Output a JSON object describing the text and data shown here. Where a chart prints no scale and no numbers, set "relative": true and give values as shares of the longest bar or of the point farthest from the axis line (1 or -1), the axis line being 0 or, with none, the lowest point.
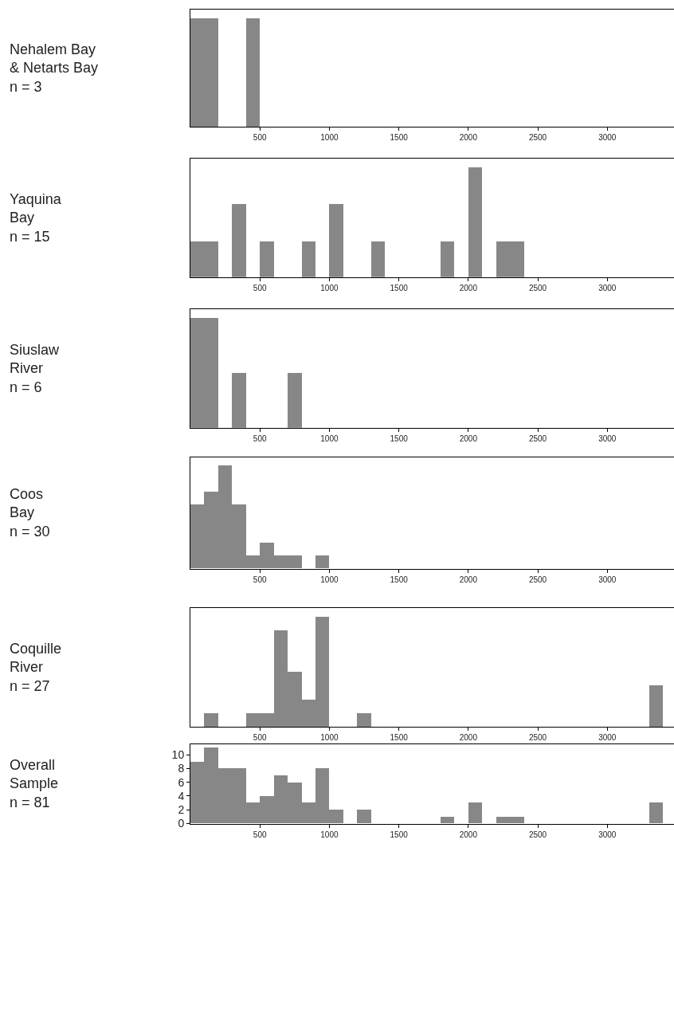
{
  "chart_data": [
    {
      "type": "bar",
      "ylabel": "Nehalem Bay\n& Netarts Bay\nn = 3",
      "relative": true,
      "color": "#878787",
      "x": [
        50,
        150,
        250,
        350,
        450,
        550,
        650,
        750,
        850,
        950,
        1050,
        1150,
        1250,
        1350,
        1450,
        1550,
        1650,
        1750,
        1850,
        1950,
        2050,
        2150,
        2250,
        2350,
        2450,
        2550,
        2650,
        2750,
        2850,
        2950,
        3050,
        3150,
        3250,
        3350
      ],
      "values": [
        1,
        1,
        0,
        0,
        1,
        0,
        0,
        0,
        0,
        0,
        0,
        0,
        0,
        0,
        0,
        0,
        0,
        0,
        0,
        0,
        0,
        0,
        0,
        0,
        0,
        0,
        0,
        0,
        0,
        0,
        0,
        0,
        0,
        0
      ],
      "xlim": [
        0,
        3480
      ],
      "xticks": [
        500,
        1000,
        1500,
        2000,
        2500,
        3000
      ]
    },
    {
      "type": "bar",
      "ylabel": "Yaquina\nBay\nn = 15",
      "relative": true,
      "color": "#878787",
      "x": [
        50,
        150,
        250,
        350,
        450,
        550,
        650,
        750,
        850,
        950,
        1050,
        1150,
        1250,
        1350,
        1450,
        1550,
        1650,
        1750,
        1850,
        1950,
        2050,
        2150,
        2250,
        2350,
        2450,
        2550,
        2650,
        2750,
        2850,
        2950,
        3050,
        3150,
        3250,
        3350
      ],
      "values": [
        0.33,
        0.33,
        0,
        0.67,
        0,
        0.33,
        0,
        0,
        0.33,
        0,
        0.67,
        0,
        0,
        0.33,
        0,
        0,
        0,
        0,
        0.33,
        0,
        1,
        0,
        0.33,
        0.33,
        0,
        0,
        0,
        0,
        0,
        0,
        0,
        0,
        0,
        0
      ],
      "xlim": [
        0,
        3480
      ],
      "xticks": [
        500,
        1000,
        1500,
        2000,
        2500,
        3000
      ]
    },
    {
      "type": "bar",
      "ylabel": "Siuslaw\nRiver\nn = 6",
      "relative": true,
      "color": "#878787",
      "x": [
        50,
        150,
        250,
        350,
        450,
        550,
        650,
        750,
        850,
        950,
        1050,
        1150,
        1250,
        1350,
        1450,
        1550,
        1650,
        1750,
        1850,
        1950,
        2050,
        2150,
        2250,
        2350,
        2450,
        2550,
        2650,
        2750,
        2850,
        2950,
        3050,
        3150,
        3250,
        3350
      ],
      "values": [
        1,
        1,
        0,
        0.5,
        0,
        0,
        0,
        0.5,
        0,
        0,
        0,
        0,
        0,
        0,
        0,
        0,
        0,
        0,
        0,
        0,
        0,
        0,
        0,
        0,
        0,
        0,
        0,
        0,
        0,
        0,
        0,
        0,
        0,
        0
      ],
      "xlim": [
        0,
        3480
      ],
      "xticks": [
        500,
        1000,
        1500,
        2000,
        2500,
        3000
      ]
    },
    {
      "type": "bar",
      "ylabel": "Coos\nBay\nn = 30",
      "relative": true,
      "color": "#878787",
      "x": [
        50,
        150,
        250,
        350,
        450,
        550,
        650,
        750,
        850,
        950,
        1050,
        1150,
        1250,
        1350,
        1450,
        1550,
        1650,
        1750,
        1850,
        1950,
        2050,
        2150,
        2250,
        2350,
        2450,
        2550,
        2650,
        2750,
        2850,
        2950,
        3050,
        3150,
        3250,
        3350
      ],
      "values": [
        0.625,
        0.75,
        1,
        0.625,
        0.125,
        0.25,
        0.125,
        0.125,
        0,
        0.125,
        0,
        0,
        0,
        0,
        0,
        0,
        0,
        0,
        0,
        0,
        0,
        0,
        0,
        0,
        0,
        0,
        0,
        0,
        0,
        0,
        0,
        0,
        0,
        0
      ],
      "xlim": [
        0,
        3480
      ],
      "xticks": [
        500,
        1000,
        1500,
        2000,
        2500,
        3000
      ]
    },
    {
      "type": "bar",
      "ylabel": "Coquille\nRiver\nn = 27",
      "relative": true,
      "color": "#878787",
      "x": [
        50,
        150,
        250,
        350,
        450,
        550,
        650,
        750,
        850,
        950,
        1050,
        1150,
        1250,
        1350,
        1450,
        1550,
        1650,
        1750,
        1850,
        1950,
        2050,
        2150,
        2250,
        2350,
        2450,
        2550,
        2650,
        2750,
        2850,
        2950,
        3050,
        3150,
        3250,
        3350
      ],
      "values": [
        0,
        0.125,
        0,
        0,
        0.125,
        0.125,
        0.875,
        0.5,
        0.25,
        1,
        0,
        0,
        0.125,
        0,
        0,
        0,
        0,
        0,
        0,
        0,
        0,
        0,
        0,
        0,
        0,
        0,
        0,
        0,
        0,
        0,
        0,
        0,
        0,
        0.375
      ],
      "xlim": [
        0,
        3480
      ],
      "xticks": [
        500,
        1000,
        1500,
        2000,
        2500,
        3000
      ]
    },
    {
      "type": "histogram",
      "ylabel": "Overall\nSample\nn = 81",
      "color": "#878787",
      "bins": [
        0,
        100,
        200,
        300,
        400,
        500,
        600,
        700,
        800,
        900,
        1000,
        1100,
        1200,
        1300,
        1400,
        1500,
        1600,
        1700,
        1800,
        1900,
        2000,
        2100,
        2200,
        2300,
        2400,
        2500,
        2600,
        2700,
        2800,
        2900,
        3000,
        3100,
        3200,
        3300,
        3400
      ],
      "values": [
        9,
        11,
        8,
        8,
        3,
        4,
        7,
        6,
        3,
        8,
        2,
        0,
        2,
        0,
        0,
        0,
        0,
        0,
        1,
        0,
        3,
        0,
        1,
        1,
        0,
        0,
        0,
        0,
        0,
        0,
        0,
        0,
        0,
        3
      ],
      "xlim": [
        0,
        3480
      ],
      "xticks": [
        500,
        1000,
        1500,
        2000,
        2500,
        3000
      ],
      "ylim": [
        0,
        11.5
      ],
      "yticks": [
        0,
        2,
        4,
        6,
        8,
        10
      ]
    }
  ]
}
